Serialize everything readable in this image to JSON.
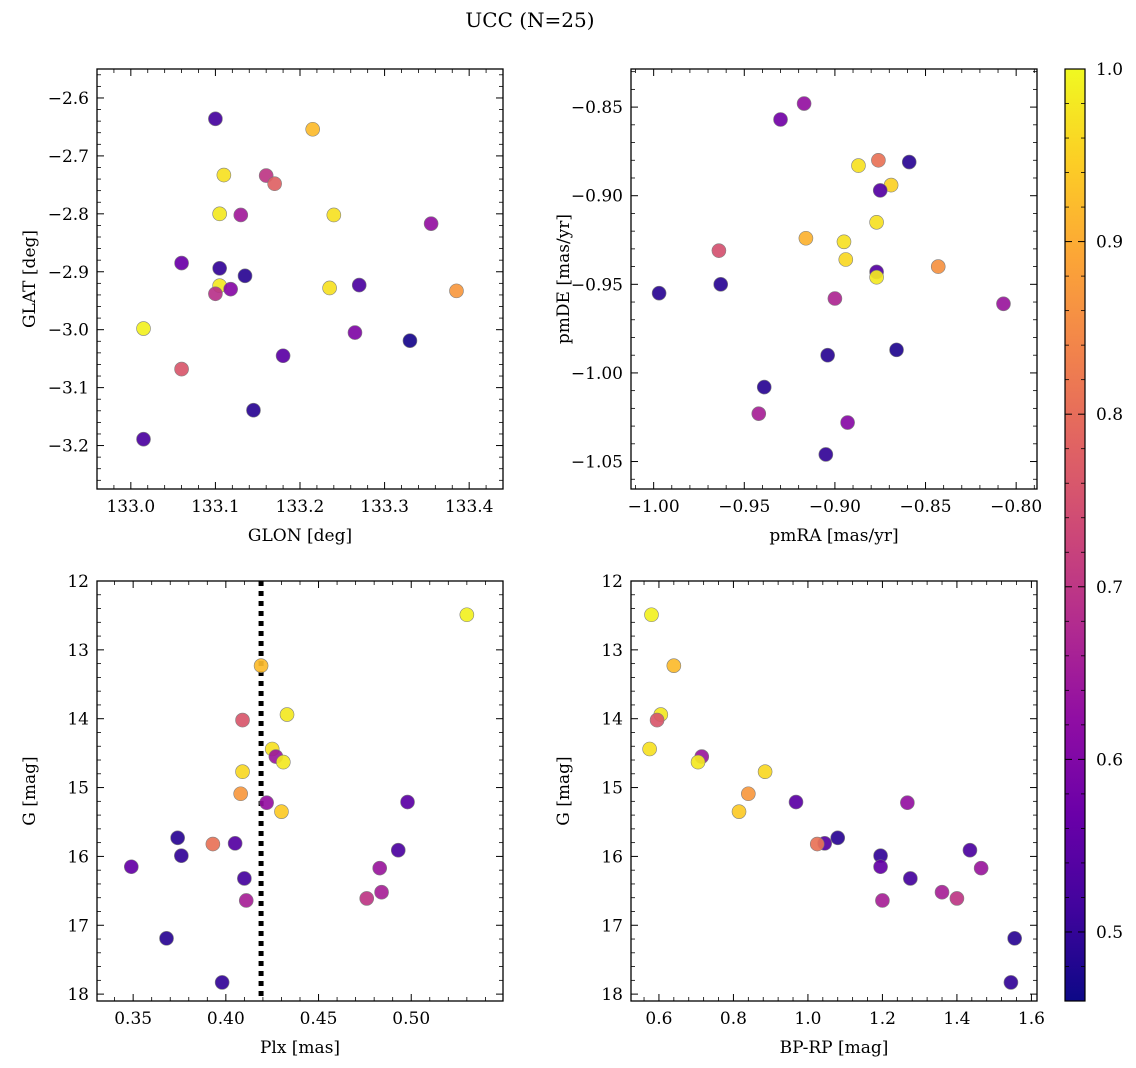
{
  "figure_title": "UCC (N=25)",
  "colorbar": {
    "min": 0.46,
    "max": 1.0,
    "ticks": [
      "0.5",
      "0.6",
      "0.7",
      "0.8",
      "0.9",
      "1.0"
    ],
    "colormap": "plasma"
  },
  "chart_data": [
    {
      "type": "scatter",
      "id": "glon_glat",
      "xlabel": "GLON [deg]",
      "ylabel": "GLAT [deg]",
      "xlim": [
        132.96,
        133.44
      ],
      "ylim": [
        -3.275,
        -2.55
      ],
      "xticks": [
        133.0,
        133.1,
        133.2,
        133.3,
        133.4
      ],
      "xtick_labels": [
        "133.0",
        "133.1",
        "133.2",
        "133.3",
        "133.4"
      ],
      "yticks": [
        -2.6,
        -2.7,
        -2.8,
        -2.9,
        -3.0,
        -3.1,
        -3.2
      ],
      "ytick_labels": [
        "−2.6",
        "−2.7",
        "−2.8",
        "−2.9",
        "−3.0",
        "−3.1",
        "−3.2"
      ],
      "points": [
        {
          "x": 133.1,
          "y": -2.636,
          "c": 0.52
        },
        {
          "x": 133.215,
          "y": -2.654,
          "c": 0.92
        },
        {
          "x": 133.11,
          "y": -2.733,
          "c": 0.97
        },
        {
          "x": 133.16,
          "y": -2.734,
          "c": 0.7
        },
        {
          "x": 133.17,
          "y": -2.748,
          "c": 0.78
        },
        {
          "x": 133.105,
          "y": -2.8,
          "c": 0.98
        },
        {
          "x": 133.13,
          "y": -2.802,
          "c": 0.65
        },
        {
          "x": 133.24,
          "y": -2.802,
          "c": 0.97
        },
        {
          "x": 133.355,
          "y": -2.817,
          "c": 0.63
        },
        {
          "x": 133.06,
          "y": -2.885,
          "c": 0.57
        },
        {
          "x": 133.105,
          "y": -2.894,
          "c": 0.5
        },
        {
          "x": 133.135,
          "y": -2.907,
          "c": 0.49
        },
        {
          "x": 133.105,
          "y": -2.924,
          "c": 0.98
        },
        {
          "x": 133.235,
          "y": -2.928,
          "c": 0.97
        },
        {
          "x": 133.27,
          "y": -2.923,
          "c": 0.53
        },
        {
          "x": 133.385,
          "y": -2.933,
          "c": 0.87
        },
        {
          "x": 133.1,
          "y": -2.938,
          "c": 0.69
        },
        {
          "x": 133.118,
          "y": -2.93,
          "c": 0.61
        },
        {
          "x": 133.015,
          "y": -2.998,
          "c": 0.99
        },
        {
          "x": 133.265,
          "y": -3.005,
          "c": 0.6
        },
        {
          "x": 133.33,
          "y": -3.019,
          "c": 0.47
        },
        {
          "x": 133.18,
          "y": -3.045,
          "c": 0.55
        },
        {
          "x": 133.06,
          "y": -3.068,
          "c": 0.76
        },
        {
          "x": 133.145,
          "y": -3.139,
          "c": 0.49
        },
        {
          "x": 133.015,
          "y": -3.189,
          "c": 0.53
        }
      ]
    },
    {
      "type": "scatter",
      "id": "pm",
      "xlabel": "pmRA [mas/yr]",
      "ylabel": "pmDE [mas/yr]",
      "xlim": [
        -1.0125,
        -0.7885
      ],
      "ylim": [
        -1.0655,
        -0.8285
      ],
      "xticks": [
        -1.0,
        -0.95,
        -0.9,
        -0.85,
        -0.8
      ],
      "xtick_labels": [
        "−1.00",
        "−0.95",
        "−0.90",
        "−0.85",
        "−0.80"
      ],
      "yticks": [
        -0.85,
        -0.9,
        -0.95,
        -1.0,
        -1.05
      ],
      "ytick_labels": [
        "−0.85",
        "−0.90",
        "−0.95",
        "−1.00",
        "−1.05"
      ],
      "points": [
        {
          "x": -0.917,
          "y": -0.848,
          "c": 0.63
        },
        {
          "x": -0.93,
          "y": -0.857,
          "c": 0.58
        },
        {
          "x": -0.876,
          "y": -0.88,
          "c": 0.81
        },
        {
          "x": -0.859,
          "y": -0.881,
          "c": 0.49
        },
        {
          "x": -0.887,
          "y": -0.883,
          "c": 0.97
        },
        {
          "x": -0.869,
          "y": -0.894,
          "c": 0.95
        },
        {
          "x": -0.875,
          "y": -0.897,
          "c": 0.54
        },
        {
          "x": -0.877,
          "y": -0.915,
          "c": 0.97
        },
        {
          "x": -0.916,
          "y": -0.924,
          "c": 0.91
        },
        {
          "x": -0.895,
          "y": -0.926,
          "c": 0.97
        },
        {
          "x": -0.964,
          "y": -0.931,
          "c": 0.75
        },
        {
          "x": -0.894,
          "y": -0.936,
          "c": 0.96
        },
        {
          "x": -0.843,
          "y": -0.94,
          "c": 0.86
        },
        {
          "x": -0.877,
          "y": -0.943,
          "c": 0.54
        },
        {
          "x": -0.877,
          "y": -0.946,
          "c": 0.98
        },
        {
          "x": -0.963,
          "y": -0.95,
          "c": 0.49
        },
        {
          "x": -0.997,
          "y": -0.955,
          "c": 0.49
        },
        {
          "x": -0.9,
          "y": -0.958,
          "c": 0.67
        },
        {
          "x": -0.807,
          "y": -0.961,
          "c": 0.64
        },
        {
          "x": -0.866,
          "y": -0.987,
          "c": 0.48
        },
        {
          "x": -0.904,
          "y": -0.99,
          "c": 0.49
        },
        {
          "x": -0.939,
          "y": -1.008,
          "c": 0.49
        },
        {
          "x": -0.942,
          "y": -1.023,
          "c": 0.66
        },
        {
          "x": -0.893,
          "y": -1.028,
          "c": 0.61
        },
        {
          "x": -0.905,
          "y": -1.046,
          "c": 0.5
        }
      ]
    },
    {
      "type": "scatter",
      "id": "plx_g",
      "xlabel": "Plx [mas]",
      "ylabel": "G [mag]",
      "xlim": [
        0.3305,
        0.5495
      ],
      "ylim": [
        18.1,
        12.0
      ],
      "xticks": [
        0.35,
        0.4,
        0.45,
        0.5
      ],
      "xtick_labels": [
        "0.35",
        "0.40",
        "0.45",
        "0.50"
      ],
      "yticks": [
        12,
        13,
        14,
        15,
        16,
        17,
        18
      ],
      "ytick_labels": [
        "12",
        "13",
        "14",
        "15",
        "16",
        "17",
        "18"
      ],
      "vline": 0.419,
      "points": [
        {
          "x": 0.53,
          "y": 12.49,
          "c": 0.99
        },
        {
          "x": 0.419,
          "y": 13.23,
          "c": 0.92
        },
        {
          "x": 0.433,
          "y": 13.94,
          "c": 0.98
        },
        {
          "x": 0.409,
          "y": 14.02,
          "c": 0.76
        },
        {
          "x": 0.425,
          "y": 14.44,
          "c": 0.97
        },
        {
          "x": 0.427,
          "y": 14.55,
          "c": 0.64
        },
        {
          "x": 0.431,
          "y": 14.63,
          "c": 0.98
        },
        {
          "x": 0.409,
          "y": 14.77,
          "c": 0.96
        },
        {
          "x": 0.408,
          "y": 15.09,
          "c": 0.87
        },
        {
          "x": 0.498,
          "y": 15.21,
          "c": 0.55
        },
        {
          "x": 0.422,
          "y": 15.22,
          "c": 0.63
        },
        {
          "x": 0.43,
          "y": 15.35,
          "c": 0.94
        },
        {
          "x": 0.374,
          "y": 15.73,
          "c": 0.49
        },
        {
          "x": 0.405,
          "y": 15.81,
          "c": 0.54
        },
        {
          "x": 0.393,
          "y": 15.82,
          "c": 0.81
        },
        {
          "x": 0.493,
          "y": 15.91,
          "c": 0.53
        },
        {
          "x": 0.376,
          "y": 15.99,
          "c": 0.5
        },
        {
          "x": 0.349,
          "y": 16.15,
          "c": 0.56
        },
        {
          "x": 0.483,
          "y": 16.17,
          "c": 0.64
        },
        {
          "x": 0.41,
          "y": 16.32,
          "c": 0.52
        },
        {
          "x": 0.484,
          "y": 16.52,
          "c": 0.66
        },
        {
          "x": 0.476,
          "y": 16.61,
          "c": 0.7
        },
        {
          "x": 0.411,
          "y": 16.64,
          "c": 0.66
        },
        {
          "x": 0.368,
          "y": 17.19,
          "c": 0.49
        },
        {
          "x": 0.398,
          "y": 17.83,
          "c": 0.5
        }
      ]
    },
    {
      "type": "scatter",
      "id": "cmd",
      "xlabel": "BP-RP [mag]",
      "ylabel": "G [mag]",
      "xlim": [
        0.525,
        1.615
      ],
      "ylim": [
        18.1,
        12.0
      ],
      "xticks": [
        0.6,
        0.8,
        1.0,
        1.2,
        1.4,
        1.6
      ],
      "xtick_labels": [
        "0.6",
        "0.8",
        "1.0",
        "1.2",
        "1.4",
        "1.6"
      ],
      "yticks": [
        12,
        13,
        14,
        15,
        16,
        17,
        18
      ],
      "ytick_labels": [
        "12",
        "13",
        "14",
        "15",
        "16",
        "17",
        "18"
      ],
      "points": [
        {
          "x": 0.58,
          "y": 12.49,
          "c": 0.99
        },
        {
          "x": 0.64,
          "y": 13.23,
          "c": 0.92
        },
        {
          "x": 0.605,
          "y": 13.94,
          "c": 0.98
        },
        {
          "x": 0.595,
          "y": 14.02,
          "c": 0.76
        },
        {
          "x": 0.575,
          "y": 14.44,
          "c": 0.97
        },
        {
          "x": 0.715,
          "y": 14.55,
          "c": 0.64
        },
        {
          "x": 0.705,
          "y": 14.63,
          "c": 0.98
        },
        {
          "x": 0.885,
          "y": 14.77,
          "c": 0.96
        },
        {
          "x": 0.84,
          "y": 15.09,
          "c": 0.87
        },
        {
          "x": 0.968,
          "y": 15.21,
          "c": 0.55
        },
        {
          "x": 1.267,
          "y": 15.22,
          "c": 0.63
        },
        {
          "x": 0.815,
          "y": 15.35,
          "c": 0.94
        },
        {
          "x": 1.08,
          "y": 15.73,
          "c": 0.49
        },
        {
          "x": 1.045,
          "y": 15.81,
          "c": 0.54
        },
        {
          "x": 1.025,
          "y": 15.82,
          "c": 0.81
        },
        {
          "x": 1.435,
          "y": 15.91,
          "c": 0.53
        },
        {
          "x": 1.195,
          "y": 15.99,
          "c": 0.5
        },
        {
          "x": 1.195,
          "y": 16.15,
          "c": 0.56
        },
        {
          "x": 1.465,
          "y": 16.17,
          "c": 0.64
        },
        {
          "x": 1.275,
          "y": 16.32,
          "c": 0.52
        },
        {
          "x": 1.36,
          "y": 16.52,
          "c": 0.66
        },
        {
          "x": 1.4,
          "y": 16.61,
          "c": 0.7
        },
        {
          "x": 1.2,
          "y": 16.64,
          "c": 0.66
        },
        {
          "x": 1.555,
          "y": 17.19,
          "c": 0.49
        },
        {
          "x": 1.545,
          "y": 17.83,
          "c": 0.5
        }
      ]
    }
  ]
}
